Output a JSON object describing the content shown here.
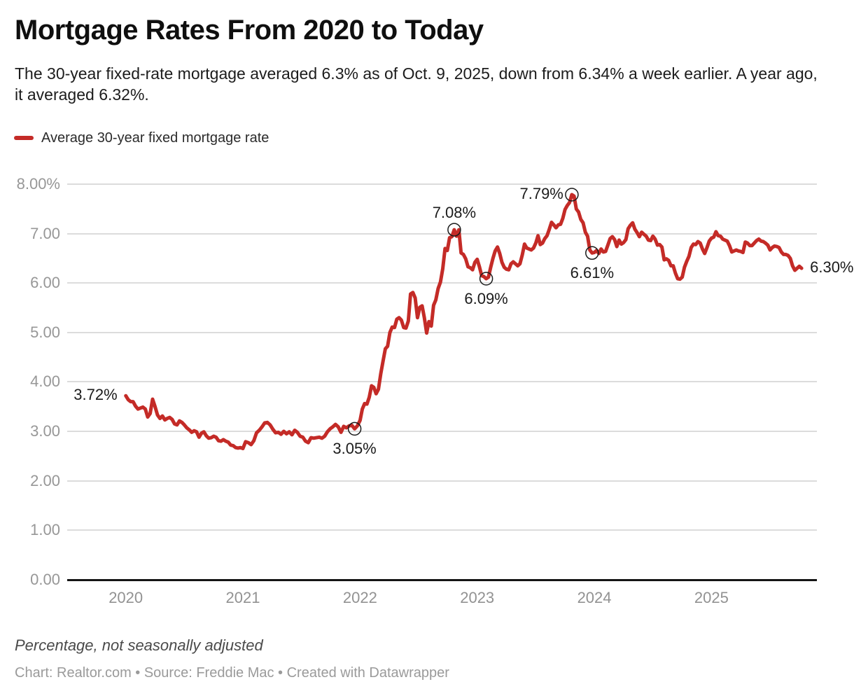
{
  "header": {
    "title": "Mortgage Rates From 2020 to Today",
    "subtitle": "The 30-year fixed-rate mortgage averaged 6.3% as of Oct. 9, 2025, down from 6.34% a week earlier. A year ago, it averaged 6.32%."
  },
  "legend": {
    "label": "Average 30-year fixed mortgage rate",
    "color": "#c42b27"
  },
  "chart_data": {
    "type": "line",
    "title": "Mortgage Rates From 2020 to Today",
    "series_name": "Average 30-year fixed mortgage rate",
    "unit": "percent, weekly",
    "line_color": "#c42b27",
    "grid": true,
    "legend_position": "top-left",
    "ylim": [
      0,
      8
    ],
    "xlabel": "",
    "ylabel": "Percentage, not seasonally adjusted",
    "x_ticks": [
      "2020",
      "2021",
      "2022",
      "2023",
      "2024",
      "2025"
    ],
    "y_ticks": [
      {
        "value": 8,
        "label": "8.00%"
      },
      {
        "value": 7,
        "label": "7.00"
      },
      {
        "value": 6,
        "label": "6.00"
      },
      {
        "value": 5,
        "label": "5.00"
      },
      {
        "value": 4,
        "label": "4.00"
      },
      {
        "value": 3,
        "label": "3.00"
      },
      {
        "value": 2,
        "label": "2.00"
      },
      {
        "value": 1,
        "label": "1.00"
      },
      {
        "value": 0,
        "label": "0.00"
      }
    ],
    "series_by_year": {
      "2020": [
        3.72,
        3.64,
        3.6,
        3.6,
        3.51,
        3.45,
        3.47,
        3.49,
        3.45,
        3.29,
        3.36,
        3.65,
        3.5,
        3.33,
        3.26,
        3.31,
        3.23,
        3.26,
        3.28,
        3.24,
        3.15,
        3.13,
        3.21,
        3.18,
        3.13,
        3.07,
        3.03,
        2.98,
        3.01,
        2.99,
        2.88,
        2.96,
        2.99,
        2.91,
        2.86,
        2.87,
        2.9,
        2.88,
        2.81,
        2.8,
        2.83,
        2.8,
        2.78,
        2.72,
        2.71,
        2.67,
        2.66,
        2.67
      ],
      "2021": [
        2.65,
        2.79,
        2.77,
        2.73,
        2.81,
        2.97,
        3.02,
        3.09,
        3.17,
        3.18,
        3.13,
        3.04,
        2.97,
        2.98,
        2.94,
        3.0,
        2.95,
        2.99,
        2.93,
        3.02,
        2.98,
        2.9,
        2.88,
        2.8,
        2.77,
        2.87,
        2.86,
        2.87,
        2.88,
        2.86,
        2.9,
        2.99,
        3.05,
        3.09,
        3.14,
        3.09,
        2.98,
        3.1,
        3.07,
        3.11,
        3.12,
        3.05,
        3.11
      ],
      "2022": [
        3.22,
        3.45,
        3.56,
        3.55,
        3.69,
        3.92,
        3.89,
        3.76,
        3.85,
        4.16,
        4.42,
        4.67,
        4.72,
        5.0,
        5.11,
        5.1,
        5.27,
        5.3,
        5.25,
        5.1,
        5.09,
        5.23,
        5.78,
        5.81,
        5.7,
        5.3,
        5.51,
        5.54,
        5.3,
        4.99,
        5.22,
        5.13,
        5.55,
        5.66,
        5.89,
        6.02,
        6.29,
        6.7,
        6.66,
        6.92,
        6.94,
        7.08,
        6.95,
        7.08,
        6.61,
        6.58,
        6.49,
        6.33,
        6.31,
        6.27,
        6.42
      ],
      "2023": [
        6.48,
        6.33,
        6.15,
        6.13,
        6.09,
        6.12,
        6.32,
        6.5,
        6.65,
        6.73,
        6.6,
        6.42,
        6.32,
        6.28,
        6.27,
        6.39,
        6.43,
        6.39,
        6.35,
        6.39,
        6.57,
        6.79,
        6.71,
        6.69,
        6.67,
        6.71,
        6.81,
        6.96,
        6.78,
        6.81,
        6.9,
        6.96,
        7.09,
        7.23,
        7.18,
        7.12,
        7.18,
        7.19,
        7.31,
        7.49,
        7.57,
        7.63,
        7.79,
        7.76,
        7.5,
        7.44,
        7.29,
        7.22,
        7.03,
        6.95,
        6.67,
        6.61
      ],
      "2024": [
        6.62,
        6.66,
        6.6,
        6.69,
        6.63,
        6.64,
        6.77,
        6.9,
        6.94,
        6.88,
        6.74,
        6.87,
        6.79,
        6.82,
        6.88,
        7.1,
        7.17,
        7.22,
        7.09,
        7.02,
        6.94,
        7.03,
        6.99,
        6.95,
        6.87,
        6.86,
        6.95,
        6.89,
        6.77,
        6.78,
        6.73,
        6.47,
        6.49,
        6.46,
        6.35,
        6.35,
        6.2,
        6.09,
        6.08,
        6.12,
        6.32,
        6.44,
        6.54,
        6.72,
        6.79,
        6.78,
        6.84,
        6.81,
        6.69,
        6.6,
        6.72,
        6.85
      ],
      "2025": [
        6.91,
        6.93,
        7.04,
        6.96,
        6.95,
        6.89,
        6.87,
        6.85,
        6.76,
        6.63,
        6.65,
        6.67,
        6.65,
        6.64,
        6.62,
        6.83,
        6.81,
        6.76,
        6.76,
        6.81,
        6.86,
        6.89,
        6.85,
        6.84,
        6.81,
        6.77,
        6.67,
        6.72,
        6.75,
        6.74,
        6.72,
        6.63,
        6.58,
        6.58,
        6.56,
        6.5,
        6.35,
        6.26,
        6.3,
        6.34,
        6.3
      ]
    },
    "annotations": [
      {
        "label": "3.72%",
        "year": 2020,
        "index": 0,
        "placement": "left",
        "marker": false
      },
      {
        "label": "3.05%",
        "year": 2021,
        "index": 41,
        "placement": "below",
        "marker": true
      },
      {
        "label": "7.08%",
        "year": 2022,
        "index": 41,
        "placement": "above",
        "marker": true
      },
      {
        "label": "6.09%",
        "year": 2023,
        "index": 4,
        "placement": "below",
        "marker": true
      },
      {
        "label": "7.79%",
        "year": 2023,
        "index": 42,
        "placement": "left",
        "marker": true
      },
      {
        "label": "6.61%",
        "year": 2023,
        "index": 51,
        "placement": "below",
        "marker": true
      },
      {
        "label": "6.30%",
        "year": 2025,
        "index": 40,
        "placement": "right",
        "marker": false
      }
    ]
  },
  "footer": {
    "note": "Percentage, not seasonally adjusted",
    "credits": "Chart: Realtor.com • Source: Freddie Mac • Created with Datawrapper"
  }
}
